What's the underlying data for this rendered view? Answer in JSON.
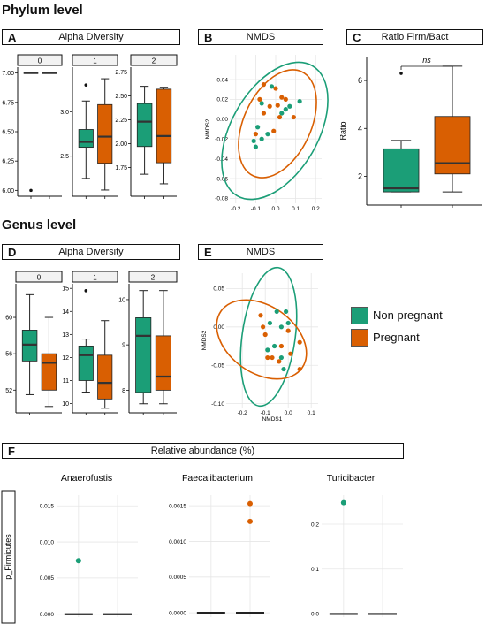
{
  "colors": {
    "non_pregnant": "#1b9e77",
    "pregnant": "#d95f02",
    "median": "#333333"
  },
  "sections": {
    "phylum": "Phylum level",
    "genus": "Genus level"
  },
  "panels": {
    "A": {
      "letter": "A",
      "title": "Alpha Diversity"
    },
    "B": {
      "letter": "B",
      "title": "NMDS"
    },
    "C": {
      "letter": "C",
      "title": "Ratio Firm/Bact"
    },
    "D": {
      "letter": "D",
      "title": "Alpha Diversity"
    },
    "E": {
      "letter": "E",
      "title": "NMDS"
    },
    "F": {
      "letter": "F",
      "title": "Relative abundance (%)"
    }
  },
  "legend": {
    "non_pregnant": "Non pregnant",
    "pregnant": "Pregnant"
  },
  "chart_data": [
    {
      "id": "A",
      "type": "box",
      "facets": [
        {
          "strip": "0",
          "ylim": [
            5.95,
            7.05
          ],
          "ticks": [
            "7.00",
            "6.75",
            "6.50",
            "6.25",
            "6.00"
          ],
          "boxes": [
            {
              "min": 7,
              "q1": 7,
              "med": 7,
              "q3": 7,
              "max": 7,
              "outliers": [
                6.0
              ]
            },
            {
              "min": 7,
              "q1": 7,
              "med": 7,
              "q3": 7,
              "max": 7,
              "outliers": []
            }
          ]
        },
        {
          "strip": "1",
          "ylim": [
            2.05,
            3.5
          ],
          "ticks": [
            "3.0",
            "2.5"
          ],
          "boxes": [
            {
              "min": 2.25,
              "q1": 2.6,
              "med": 2.66,
              "q3": 2.8,
              "max": 3.12,
              "outliers": [
                3.3
              ]
            },
            {
              "min": 2.12,
              "q1": 2.42,
              "med": 2.72,
              "q3": 3.08,
              "max": 3.37,
              "outliers": []
            }
          ]
        },
        {
          "strip": "2",
          "ylim": [
            1.45,
            2.8
          ],
          "ticks": [
            "2.75",
            "2.50",
            "2.25",
            "2.00",
            "1.75"
          ],
          "boxes": [
            {
              "min": 1.68,
              "q1": 1.97,
              "med": 2.23,
              "q3": 2.42,
              "max": 2.6,
              "outliers": []
            },
            {
              "min": 1.58,
              "q1": 1.8,
              "med": 2.08,
              "q3": 2.57,
              "max": 2.59,
              "outliers": []
            }
          ]
        }
      ]
    },
    {
      "id": "B",
      "type": "scatter",
      "xlabel": "NMDS1",
      "ylabel": "NMDS2",
      "xlim": [
        -0.23,
        0.23
      ],
      "ylim": [
        -0.085,
        0.065
      ],
      "xticks": [
        "-0.2",
        "-0.1",
        "0.0",
        "0.1",
        "0.2"
      ],
      "yticks": [
        "0.04",
        "0.02",
        "0.00",
        "-0.02",
        "-0.04",
        "-0.06",
        "-0.08"
      ],
      "non_pregnant": [
        [
          -0.02,
          0.033
        ],
        [
          -0.07,
          0.016
        ],
        [
          -0.09,
          -0.008
        ],
        [
          -0.11,
          -0.022
        ],
        [
          -0.1,
          -0.028
        ],
        [
          -0.07,
          -0.02
        ],
        [
          0.05,
          0.01
        ],
        [
          0.07,
          0.013
        ],
        [
          0.12,
          0.018
        ],
        [
          0.03,
          0.006
        ],
        [
          -0.04,
          -0.015
        ]
      ],
      "pregnant": [
        [
          -0.06,
          0.035
        ],
        [
          0.0,
          0.031
        ],
        [
          -0.08,
          0.02
        ],
        [
          0.05,
          0.02
        ],
        [
          0.03,
          0.022
        ],
        [
          0.01,
          0.014
        ],
        [
          -0.03,
          0.013
        ],
        [
          -0.06,
          0.006
        ],
        [
          0.02,
          0.002
        ],
        [
          0.09,
          0.002
        ],
        [
          -0.1,
          -0.015
        ],
        [
          -0.01,
          -0.012
        ]
      ]
    },
    {
      "id": "C",
      "type": "box",
      "ylabel": "Ratio",
      "ylim": [
        0.8,
        7.0
      ],
      "ticks": [
        "6",
        "4",
        "2"
      ],
      "annotation": "ns",
      "boxes": [
        {
          "min": 1.35,
          "q1": 1.35,
          "med": 1.5,
          "q3": 3.15,
          "max": 3.5,
          "outliers": [
            6.3
          ]
        },
        {
          "min": 1.35,
          "q1": 2.1,
          "med": 2.55,
          "q3": 4.5,
          "max": 6.6,
          "outliers": []
        }
      ]
    },
    {
      "id": "D",
      "type": "box",
      "facets": [
        {
          "strip": "0",
          "ylim": [
            49.5,
            63.7
          ],
          "ticks": [
            "60",
            "56",
            "52"
          ],
          "boxes": [
            {
              "min": 51.5,
              "q1": 55.2,
              "med": 57,
              "q3": 58.6,
              "max": 62.5,
              "outliers": []
            },
            {
              "min": 50.2,
              "q1": 52,
              "med": 55,
              "q3": 56,
              "max": 60,
              "outliers": []
            }
          ]
        },
        {
          "strip": "1",
          "ylim": [
            9.6,
            15.2
          ],
          "ticks": [
            "15",
            "14",
            "13",
            "12",
            "11",
            "10"
          ],
          "boxes": [
            {
              "min": 10.5,
              "q1": 11,
              "med": 12.1,
              "q3": 12.5,
              "max": 12.8,
              "outliers": [
                14.9
              ]
            },
            {
              "min": 9.8,
              "q1": 10.2,
              "med": 10.9,
              "q3": 12.1,
              "max": 13.6,
              "outliers": []
            }
          ]
        },
        {
          "strip": "2",
          "ylim": [
            7.5,
            10.35
          ],
          "ticks": [
            "10",
            "9",
            "8"
          ],
          "boxes": [
            {
              "min": 7.7,
              "q1": 7.95,
              "med": 9.2,
              "q3": 9.6,
              "max": 10.2,
              "outliers": []
            },
            {
              "min": 7.7,
              "q1": 8.0,
              "med": 8.3,
              "q3": 9.2,
              "max": 10.2,
              "outliers": []
            }
          ]
        }
      ]
    },
    {
      "id": "E",
      "type": "scatter",
      "xlabel": "NMDS1",
      "ylabel": "NMDS2",
      "xlim": [
        -0.27,
        0.13
      ],
      "ylim": [
        -0.105,
        0.07
      ],
      "xticks": [
        "-0.2",
        "-0.1",
        "0.0",
        "0.1"
      ],
      "yticks": [
        "0.05",
        "0.00",
        "-0.05",
        "-0.10"
      ],
      "non_pregnant": [
        [
          -0.05,
          0.02
        ],
        [
          -0.01,
          0.02
        ],
        [
          -0.08,
          0.005
        ],
        [
          -0.03,
          0.0
        ],
        [
          0.0,
          0.005
        ],
        [
          -0.06,
          -0.025
        ],
        [
          -0.09,
          -0.03
        ],
        [
          -0.03,
          -0.04
        ],
        [
          -0.02,
          -0.055
        ]
      ],
      "pregnant": [
        [
          -0.12,
          0.015
        ],
        [
          -0.11,
          0.0
        ],
        [
          -0.1,
          -0.01
        ],
        [
          0.0,
          -0.005
        ],
        [
          -0.03,
          -0.025
        ],
        [
          -0.09,
          -0.04
        ],
        [
          0.05,
          -0.02
        ],
        [
          -0.07,
          -0.04
        ],
        [
          0.01,
          -0.035
        ],
        [
          0.05,
          -0.055
        ],
        [
          -0.04,
          -0.045
        ]
      ]
    },
    {
      "id": "F",
      "type": "dot-box",
      "row_label": "p_Firmicutes",
      "facets": [
        {
          "title": "Anaerofustis",
          "ylim": [
            -0.0004,
            0.0165
          ],
          "ticks": [
            "0.015",
            "0.010",
            "0.005",
            "0.000"
          ],
          "ticks_v": [
            0.015,
            0.01,
            0.005,
            0
          ],
          "non_pregnant_points": [
            0.0074
          ],
          "pregnant_points": []
        },
        {
          "title": "Faecalibacterium",
          "ylim": [
            -6e-05,
            0.00165
          ],
          "ticks": [
            "0.0015",
            "0.0010",
            "0.0005",
            "0.0000"
          ],
          "ticks_v": [
            0.0015,
            0.001,
            0.0005,
            0
          ],
          "non_pregnant_points": [],
          "pregnant_points": [
            0.00153,
            0.00128
          ]
        },
        {
          "title": "Turicibacter",
          "ylim": [
            -0.007,
            0.265
          ],
          "ticks": [
            "0.2",
            "0.1",
            "0.0"
          ],
          "ticks_v": [
            0.2,
            0.1,
            0.0
          ],
          "non_pregnant_points": [
            0.248
          ],
          "pregnant_points": []
        }
      ]
    }
  ]
}
